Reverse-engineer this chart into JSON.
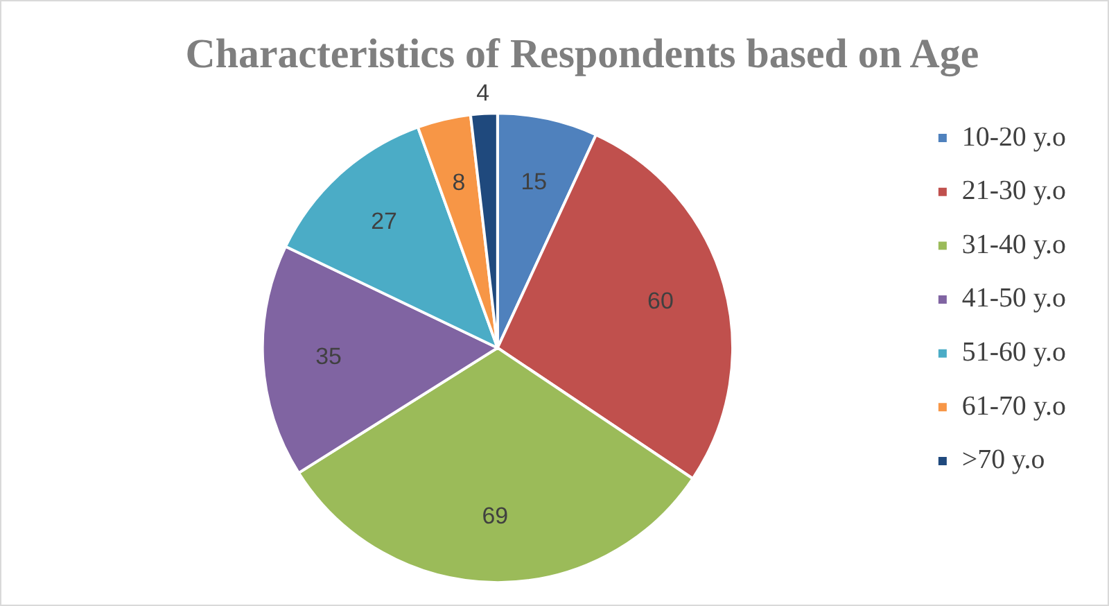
{
  "chart_data": {
    "type": "pie",
    "title": "Characteristics of Respondents based on Age",
    "categories": [
      "10-20 y.o",
      "21-30 y.o",
      "31-40 y.o",
      "41-50 y.o",
      "51-60 y.o",
      "61-70 y.o",
      ">70 y.o"
    ],
    "values": [
      15,
      60,
      69,
      35,
      27,
      8,
      4
    ],
    "colors": [
      "#4f81bd",
      "#c0504d",
      "#9bbb59",
      "#8064a2",
      "#4bacc6",
      "#f79646",
      "#1f497d"
    ],
    "data_labels": true,
    "legend": "right"
  }
}
